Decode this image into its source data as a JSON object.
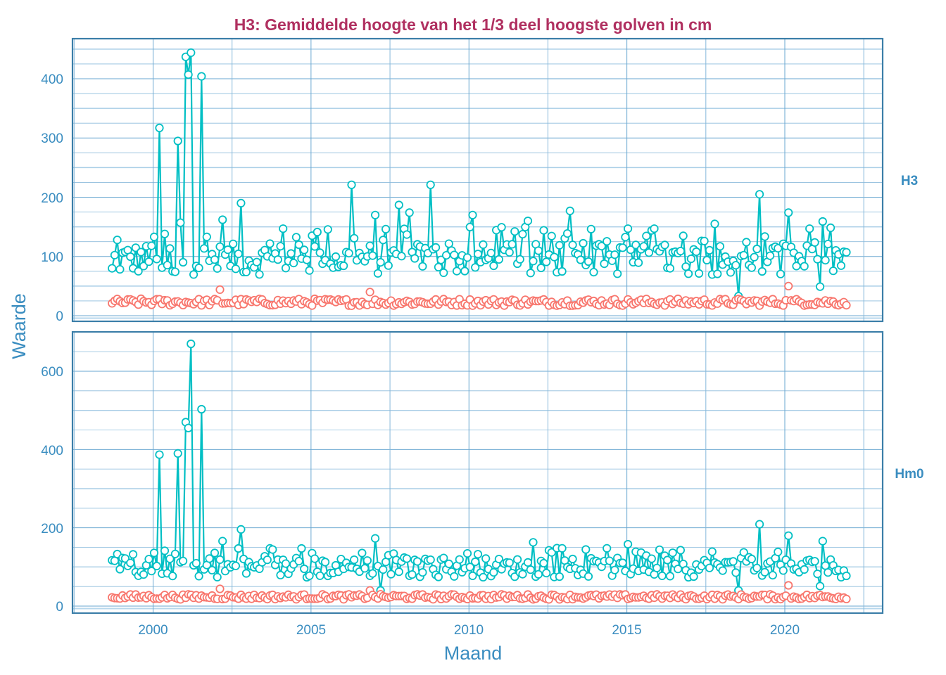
{
  "chart_data": {
    "type": "line",
    "title": "H3: Gemiddelde hoogte van het 1/3 deel hoogste golven in cm",
    "xlabel": "Maand",
    "ylabel": "Waarde",
    "x_ticks": [
      "2000",
      "2005",
      "2010",
      "2015",
      "2020"
    ],
    "x_range": [
      1997.5,
      2023.1
    ],
    "grid": true,
    "legend": "none",
    "series_colors": {
      "teal": "#00bfc4",
      "salmon": "#f8766d"
    },
    "panels": [
      {
        "strip_label": "H3",
        "ylim": [
          -5,
          470
        ],
        "y_ticks": [
          0,
          100,
          200,
          300,
          400
        ],
        "series": [
          {
            "name": "teal",
            "color": "#00bfc4",
            "peaks": [
              {
                "x": 1998.7,
                "y": 80
              },
              {
                "x": 1998.9,
                "y": 128
              },
              {
                "x": 2000.0,
                "y": 133
              },
              {
                "x": 2000.2,
                "y": 317
              },
              {
                "x": 2000.4,
                "y": 138
              },
              {
                "x": 2000.8,
                "y": 295
              },
              {
                "x": 2000.9,
                "y": 157
              },
              {
                "x": 2001.0,
                "y": 437
              },
              {
                "x": 2001.1,
                "y": 407
              },
              {
                "x": 2001.2,
                "y": 444
              },
              {
                "x": 2001.5,
                "y": 404
              },
              {
                "x": 2002.2,
                "y": 162
              },
              {
                "x": 2002.8,
                "y": 190
              },
              {
                "x": 2004.1,
                "y": 147
              },
              {
                "x": 2006.3,
                "y": 221
              },
              {
                "x": 2007.0,
                "y": 170
              },
              {
                "x": 2007.8,
                "y": 187
              },
              {
                "x": 2008.1,
                "y": 174
              },
              {
                "x": 2008.8,
                "y": 221
              },
              {
                "x": 2010.1,
                "y": 170
              },
              {
                "x": 2011.9,
                "y": 160
              },
              {
                "x": 2013.2,
                "y": 177
              },
              {
                "x": 2015.0,
                "y": 147
              },
              {
                "x": 2015.9,
                "y": 147
              },
              {
                "x": 2017.8,
                "y": 155
              },
              {
                "x": 2018.5,
                "y": 33
              },
              {
                "x": 2019.2,
                "y": 205
              },
              {
                "x": 2020.1,
                "y": 174
              },
              {
                "x": 2020.8,
                "y": 147
              },
              {
                "x": 2021.1,
                "y": 49
              },
              {
                "x": 2021.2,
                "y": 159
              },
              {
                "x": 2021.9,
                "y": 108
              }
            ],
            "typical_range": [
              55,
              150
            ]
          },
          {
            "name": "salmon",
            "color": "#f8766d",
            "peaks": [
              {
                "x": 2002.1,
                "y": 44
              },
              {
                "x": 2006.9,
                "y": 40
              },
              {
                "x": 2020.1,
                "y": 50
              }
            ],
            "typical_range": [
              12,
              36
            ]
          }
        ]
      },
      {
        "strip_label": "Hm0",
        "ylim": [
          -10,
          690
        ],
        "y_ticks": [
          0,
          200,
          400,
          600
        ],
        "series": [
          {
            "name": "teal",
            "color": "#00bfc4",
            "peaks": [
              {
                "x": 1998.9,
                "y": 133
              },
              {
                "x": 2000.0,
                "y": 136
              },
              {
                "x": 2000.2,
                "y": 387
              },
              {
                "x": 2000.8,
                "y": 390
              },
              {
                "x": 2000.9,
                "y": 112
              },
              {
                "x": 2001.0,
                "y": 470
              },
              {
                "x": 2001.1,
                "y": 455
              },
              {
                "x": 2001.2,
                "y": 670
              },
              {
                "x": 2001.5,
                "y": 503
              },
              {
                "x": 2002.2,
                "y": 166
              },
              {
                "x": 2002.8,
                "y": 196
              },
              {
                "x": 2007.0,
                "y": 173
              },
              {
                "x": 2007.2,
                "y": 40
              },
              {
                "x": 2012.0,
                "y": 163
              },
              {
                "x": 2015.0,
                "y": 158
              },
              {
                "x": 2018.5,
                "y": 40
              },
              {
                "x": 2019.2,
                "y": 209
              },
              {
                "x": 2020.1,
                "y": 180
              },
              {
                "x": 2021.1,
                "y": 51
              },
              {
                "x": 2021.2,
                "y": 166
              }
            ],
            "typical_range": [
              60,
              150
            ]
          },
          {
            "name": "salmon",
            "color": "#f8766d",
            "peaks": [
              {
                "x": 2002.1,
                "y": 44
              },
              {
                "x": 2006.9,
                "y": 40
              },
              {
                "x": 2020.1,
                "y": 53
              }
            ],
            "typical_range": [
              12,
              38
            ]
          }
        ]
      }
    ],
    "monthly_start": 1998.7,
    "monthly_end": 2021.95
  },
  "labels": {
    "title": "H3: Gemiddelde hoogte van het 1/3 deel hoogste golven in cm",
    "xlabel": "Maand",
    "ylabel": "Waarde",
    "strip_top": "H3",
    "strip_bottom": "Hm0",
    "x_ticks": [
      "2000",
      "2005",
      "2010",
      "2015",
      "2020"
    ],
    "y_ticks_top": [
      "0",
      "100",
      "200",
      "300",
      "400"
    ],
    "y_ticks_bottom": [
      "0",
      "200",
      "400",
      "600"
    ]
  }
}
